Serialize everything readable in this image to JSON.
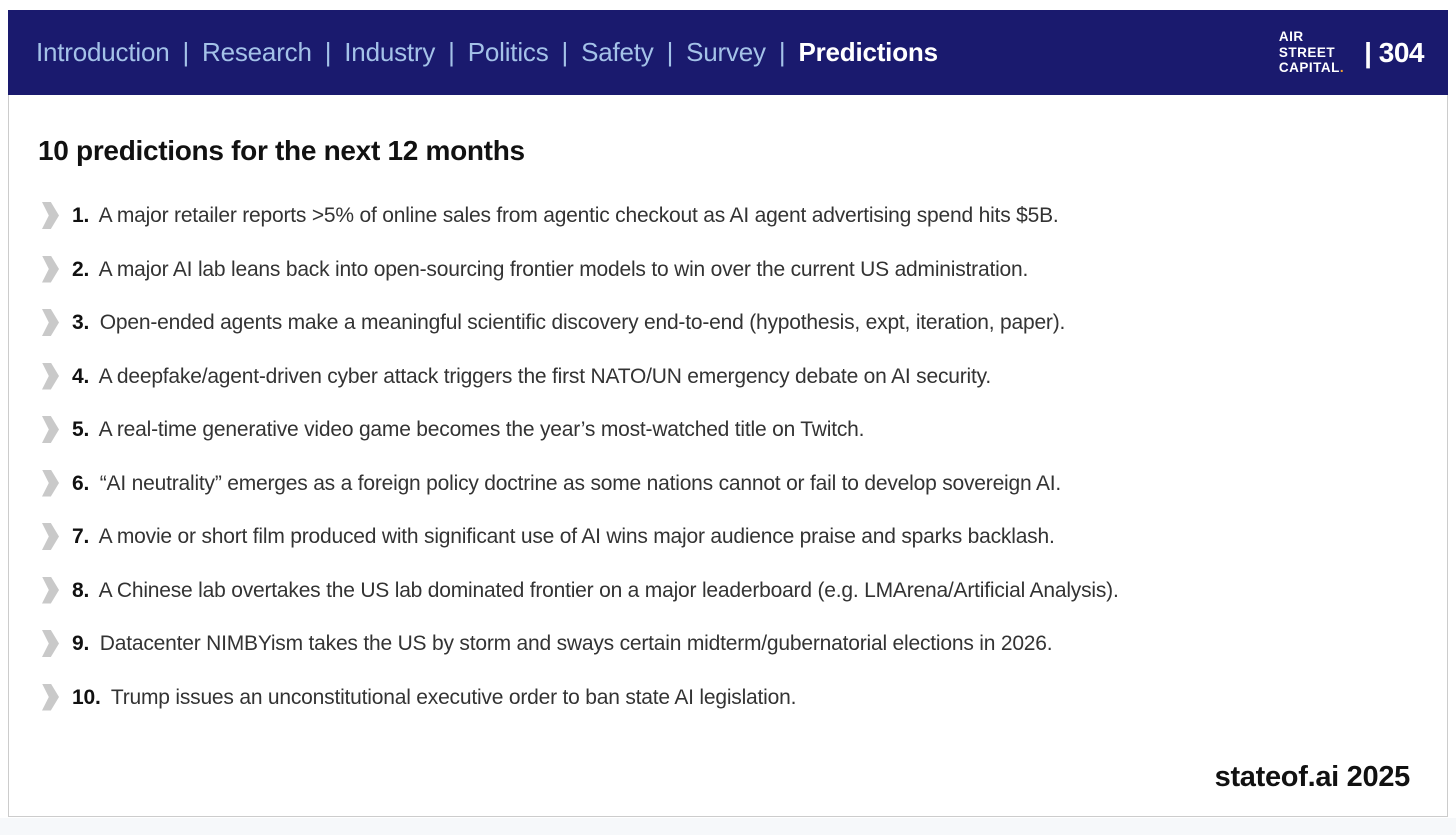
{
  "colors": {
    "header_bg": "#1a1a6e",
    "nav_link": "#a4c2e8",
    "nav_active": "#ffffff",
    "logo_dot": "#f0a030",
    "bullet": "#c9c9c9",
    "body_text": "#333333",
    "bottom_strip": "#f6f8fa"
  },
  "header": {
    "nav_separator": "|",
    "nav_items": [
      {
        "label": "Introduction",
        "active": false
      },
      {
        "label": "Research",
        "active": false
      },
      {
        "label": "Industry",
        "active": false
      },
      {
        "label": "Politics",
        "active": false
      },
      {
        "label": "Safety",
        "active": false
      },
      {
        "label": "Survey",
        "active": false
      },
      {
        "label": "Predictions",
        "active": true
      }
    ],
    "logo_lines": [
      "AIR",
      "STREET",
      "CAPITAL"
    ],
    "logo_dot": ".",
    "page_separator": "|",
    "page_number": "304"
  },
  "main": {
    "title": "10 predictions for the next 12 months",
    "predictions": [
      {
        "num": "1.",
        "text": "A major retailer reports >5% of online sales from agentic checkout as AI agent advertising spend hits $5B."
      },
      {
        "num": "2.",
        "text": "A major AI lab leans back into open-sourcing frontier models to win over the current US administration."
      },
      {
        "num": "3.",
        "text": "Open-ended agents make a meaningful scientific discovery end-to-end (hypothesis, expt, iteration, paper)."
      },
      {
        "num": "4.",
        "text": "A deepfake/agent-driven cyber attack triggers the first NATO/UN emergency debate on AI security."
      },
      {
        "num": "5.",
        "text": "A real-time generative video game becomes the year’s most-watched title on Twitch."
      },
      {
        "num": "6.",
        "text": "“AI neutrality” emerges as a foreign policy doctrine as some nations cannot or fail to develop sovereign AI."
      },
      {
        "num": "7.",
        "text": "A movie or short film produced with significant use of AI wins major audience praise and sparks backlash."
      },
      {
        "num": "8.",
        "text": "A Chinese lab overtakes the US lab dominated frontier on a major leaderboard (e.g. LMArena/Artificial Analysis)."
      },
      {
        "num": "9.",
        "text": "Datacenter NIMBYism takes the US by storm and sways certain midterm/gubernatorial elections in 2026."
      },
      {
        "num": "10.",
        "text": "Trump issues an unconstitutional executive order to ban state AI legislation."
      }
    ]
  },
  "footer": {
    "brand": "stateof.ai 2025"
  }
}
